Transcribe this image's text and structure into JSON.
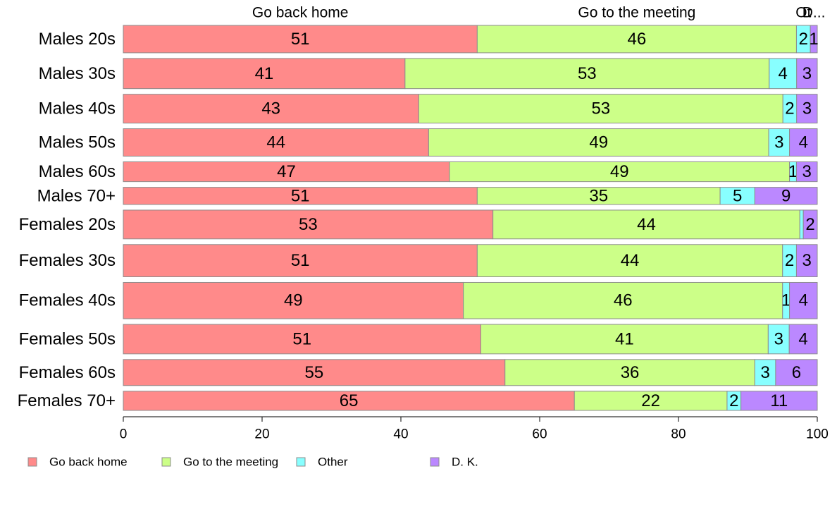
{
  "chart_data": {
    "type": "bar",
    "orientation": "horizontal",
    "stacked": true,
    "categories": [
      "Males 20s",
      "Males 30s",
      "Males 40s",
      "Males 50s",
      "Males 60s",
      "Males 70+",
      "Females 20s",
      "Females 30s",
      "Females 40s",
      "Females 50s",
      "Females 60s",
      "Females 70+"
    ],
    "category_weights": [
      40,
      44,
      42,
      40,
      29,
      25,
      42,
      47,
      53,
      43,
      38,
      28
    ],
    "series": [
      {
        "name": "Go back home",
        "color": "#ff8a8a",
        "values": [
          51,
          41,
          43,
          44,
          47,
          51,
          53,
          51,
          49,
          51,
          55,
          65
        ],
        "labels": [
          "51",
          "41",
          "43",
          "44",
          "47",
          "51",
          "53",
          "51",
          "49",
          "51",
          "55",
          "65"
        ]
      },
      {
        "name": "Go to the meeting",
        "color": "#ccff88",
        "values": [
          46,
          53,
          53,
          49,
          49,
          35,
          44,
          44,
          46,
          41,
          36,
          22
        ],
        "labels": [
          "46",
          "53",
          "53",
          "49",
          "49",
          "35",
          "44",
          "44",
          "46",
          "41",
          "36",
          "22"
        ]
      },
      {
        "name": "Other",
        "color": "#88ffff",
        "values": [
          2,
          4,
          2,
          3,
          1,
          5,
          0.5,
          2,
          1,
          3,
          3,
          2
        ],
        "labels": [
          "2",
          "4",
          "2",
          "3",
          "1",
          "5",
          "",
          "2",
          "1",
          "3",
          "3",
          "2"
        ]
      },
      {
        "name": "D. K.",
        "color": "#bb88ff",
        "values": [
          1,
          3,
          3,
          4,
          3,
          9,
          2,
          3,
          4,
          4,
          6,
          11
        ],
        "labels": [
          "1",
          "3",
          "3",
          "4",
          "3",
          "9",
          "2",
          "3",
          "4",
          "4",
          "6",
          "11"
        ]
      }
    ],
    "top_labels": [
      "Go back home",
      "Go to the meeting",
      "Ot",
      "D..."
    ],
    "xlim": [
      0,
      100
    ],
    "xticks": [
      "0",
      "20",
      "40",
      "60",
      "80",
      "100"
    ],
    "legend_position": "bottom-left",
    "grid": false
  }
}
